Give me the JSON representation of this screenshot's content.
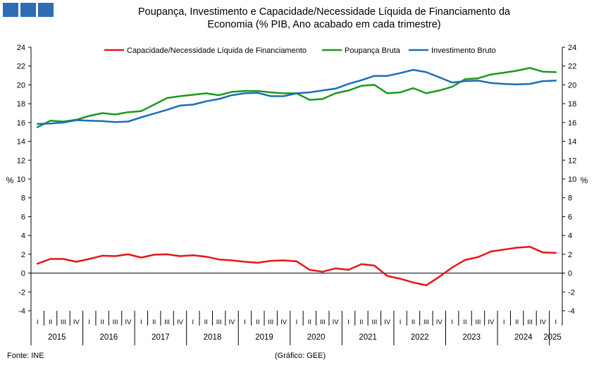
{
  "header": {
    "title_line1": "Poupança, Investimento  e Capacidade/Necessidade  Líquida de Financiamento  da",
    "title_line2": "Economia (% PIB, Ano acabado em cada trimestre)",
    "logo_color": "#2E6DB4"
  },
  "footer": {
    "source": "Fonte: INE",
    "credit": "(Gráfico: GEE)"
  },
  "chart_data": {
    "type": "line",
    "title": "Poupança, Investimento  e Capacidade/Necessidade  Líquida de Financiamento  da Economia (% PIB, Ano acabado em cada trimestre)",
    "ylabel_left": "%",
    "ylabel_right": "%",
    "ylim": [
      -4,
      24
    ],
    "yticks": [
      -4,
      -2,
      0,
      2,
      4,
      6,
      8,
      10,
      12,
      14,
      16,
      18,
      20,
      22,
      24
    ],
    "grid": false,
    "legend_position": "top",
    "quarter_labels": [
      "I",
      "II",
      "III",
      "IV"
    ],
    "years": [
      "2015",
      "2016",
      "2017",
      "2018",
      "2019",
      "2020",
      "2021",
      "2022",
      "2023",
      "2024",
      "2025"
    ],
    "x": [
      "2015 I",
      "2015 II",
      "2015 III",
      "2015 IV",
      "2016 I",
      "2016 II",
      "2016 III",
      "2016 IV",
      "2017 I",
      "2017 II",
      "2017 III",
      "2017 IV",
      "2018 I",
      "2018 II",
      "2018 III",
      "2018 IV",
      "2019 I",
      "2019 II",
      "2019 III",
      "2019 IV",
      "2020 I",
      "2020 II",
      "2020 III",
      "2020 IV",
      "2021 I",
      "2021 II",
      "2021 III",
      "2021 IV",
      "2022 I",
      "2022 II",
      "2022 III",
      "2022 IV",
      "2023 I",
      "2023 II",
      "2023 III",
      "2023 IV",
      "2024 I",
      "2024 II",
      "2024 III",
      "2024 IV",
      "2025 I"
    ],
    "series": [
      {
        "name": "Capacidade/Necessidade Líquida de Financiamento",
        "color": "#E8141B",
        "values": [
          1.0,
          1.5,
          1.5,
          1.2,
          1.5,
          1.85,
          1.8,
          2.0,
          1.65,
          1.95,
          2.0,
          1.8,
          1.9,
          1.75,
          1.45,
          1.35,
          1.2,
          1.1,
          1.3,
          1.35,
          1.25,
          0.35,
          0.15,
          0.5,
          0.35,
          0.95,
          0.8,
          -0.3,
          -0.6,
          -1.0,
          -1.3,
          -0.4,
          0.6,
          1.4,
          1.7,
          2.3,
          2.5,
          2.7,
          2.8,
          2.2,
          2.15
        ]
      },
      {
        "name": "Poupança Bruta",
        "color": "#1A9A1A",
        "values": [
          15.5,
          16.2,
          16.1,
          16.3,
          16.7,
          17.0,
          16.85,
          17.1,
          17.2,
          17.9,
          18.6,
          18.8,
          18.95,
          19.1,
          18.9,
          19.25,
          19.35,
          19.35,
          19.2,
          19.1,
          19.1,
          18.4,
          18.5,
          19.1,
          19.4,
          19.9,
          20.0,
          19.1,
          19.2,
          19.65,
          19.1,
          19.4,
          19.8,
          20.6,
          20.7,
          21.1,
          21.3,
          21.5,
          21.8,
          21.4,
          21.35
        ]
      },
      {
        "name": "Investimento Bruto",
        "color": "#1C6EB8",
        "values": [
          15.85,
          15.9,
          16.0,
          16.25,
          16.2,
          16.15,
          16.05,
          16.1,
          16.55,
          16.95,
          17.35,
          17.8,
          17.9,
          18.25,
          18.5,
          18.9,
          19.1,
          19.15,
          18.8,
          18.8,
          19.1,
          19.2,
          19.4,
          19.6,
          20.1,
          20.5,
          20.95,
          20.95,
          21.25,
          21.6,
          21.35,
          20.8,
          20.25,
          20.4,
          20.45,
          20.2,
          20.1,
          20.05,
          20.1,
          20.4,
          20.45
        ]
      }
    ]
  }
}
